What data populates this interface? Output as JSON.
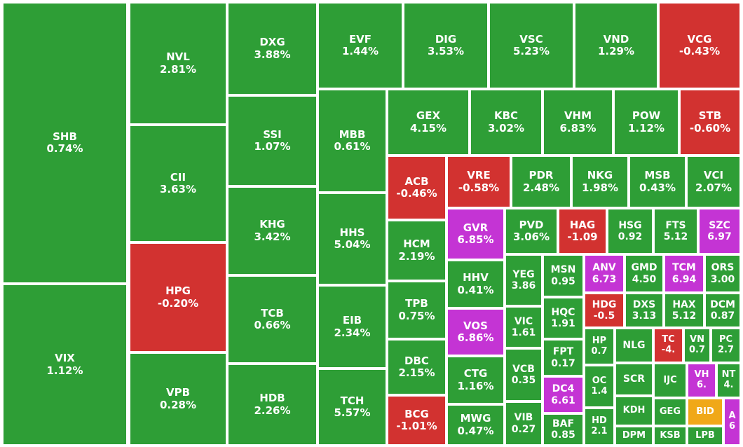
{
  "colors": {
    "up": "#2e9e36",
    "down": "#d23230",
    "ceiling": "#c434d4",
    "reference": "#f0a818"
  },
  "chart_data": {
    "type": "treemap",
    "tiles": [
      {
        "label": "SHB",
        "value": "0.74%",
        "status": "up"
      },
      {
        "label": "VIX",
        "value": "1.12%",
        "status": "up"
      },
      {
        "label": "NVL",
        "value": "2.81%",
        "status": "up"
      },
      {
        "label": "CII",
        "value": "3.63%",
        "status": "up"
      },
      {
        "label": "HPG",
        "value": "-0.20%",
        "status": "down"
      },
      {
        "label": "VPB",
        "value": "0.28%",
        "status": "up"
      },
      {
        "label": "DXG",
        "value": "3.88%",
        "status": "up"
      },
      {
        "label": "SSI",
        "value": "1.07%",
        "status": "up"
      },
      {
        "label": "KHG",
        "value": "3.42%",
        "status": "up"
      },
      {
        "label": "TCB",
        "value": "0.66%",
        "status": "up"
      },
      {
        "label": "HDB",
        "value": "2.26%",
        "status": "up"
      },
      {
        "label": "EVF",
        "value": "1.44%",
        "status": "up"
      },
      {
        "label": "DIG",
        "value": "3.53%",
        "status": "up"
      },
      {
        "label": "VSC",
        "value": "5.23%",
        "status": "up"
      },
      {
        "label": "VND",
        "value": "1.29%",
        "status": "up"
      },
      {
        "label": "VCG",
        "value": "-0.43%",
        "status": "down"
      },
      {
        "label": "MBB",
        "value": "0.61%",
        "status": "up"
      },
      {
        "label": "HHS",
        "value": "5.04%",
        "status": "up"
      },
      {
        "label": "EIB",
        "value": "2.34%",
        "status": "up"
      },
      {
        "label": "TCH",
        "value": "5.57%",
        "status": "up"
      },
      {
        "label": "GEX",
        "value": "4.15%",
        "status": "up"
      },
      {
        "label": "KBC",
        "value": "3.02%",
        "status": "up"
      },
      {
        "label": "VHM",
        "value": "6.83%",
        "status": "up"
      },
      {
        "label": "POW",
        "value": "1.12%",
        "status": "up"
      },
      {
        "label": "STB",
        "value": "-0.60%",
        "status": "down"
      },
      {
        "label": "ACB",
        "value": "-0.46%",
        "status": "down"
      },
      {
        "label": "VRE",
        "value": "-0.58%",
        "status": "down"
      },
      {
        "label": "PDR",
        "value": "2.48%",
        "status": "up"
      },
      {
        "label": "NKG",
        "value": "1.98%",
        "status": "up"
      },
      {
        "label": "MSB",
        "value": "0.43%",
        "status": "up"
      },
      {
        "label": "VCI",
        "value": "2.07%",
        "status": "up"
      },
      {
        "label": "HCM",
        "value": "2.19%",
        "status": "up"
      },
      {
        "label": "TPB",
        "value": "0.75%",
        "status": "up"
      },
      {
        "label": "DBC",
        "value": "2.15%",
        "status": "up"
      },
      {
        "label": "BCG",
        "value": "-1.01%",
        "status": "down"
      },
      {
        "label": "GVR",
        "value": "6.85%",
        "status": "ceiling"
      },
      {
        "label": "HHV",
        "value": "0.41%",
        "status": "up"
      },
      {
        "label": "VOS",
        "value": "6.86%",
        "status": "ceiling"
      },
      {
        "label": "CTG",
        "value": "1.16%",
        "status": "up"
      },
      {
        "label": "MWG",
        "value": "0.47%",
        "status": "up"
      },
      {
        "label": "PVD",
        "value": "3.06%",
        "status": "up"
      },
      {
        "label": "HAG",
        "value": "-1.09",
        "status": "down"
      },
      {
        "label": "HSG",
        "value": "0.92",
        "status": "up"
      },
      {
        "label": "FTS",
        "value": "5.12",
        "status": "up"
      },
      {
        "label": "SZC",
        "value": "6.97",
        "status": "ceiling"
      },
      {
        "label": "YEG",
        "value": "3.86",
        "status": "up"
      },
      {
        "label": "VIC",
        "value": "1.61",
        "status": "up"
      },
      {
        "label": "VCB",
        "value": "0.35",
        "status": "up"
      },
      {
        "label": "VIB",
        "value": "0.27",
        "status": "up"
      },
      {
        "label": "MSN",
        "value": "0.95",
        "status": "up"
      },
      {
        "label": "HQC",
        "value": "1.91",
        "status": "up"
      },
      {
        "label": "FPT",
        "value": "0.17",
        "status": "up"
      },
      {
        "label": "DC4",
        "value": "6.61",
        "status": "ceiling"
      },
      {
        "label": "BAF",
        "value": "0.85",
        "status": "up"
      },
      {
        "label": "ANV",
        "value": "6.73",
        "status": "ceiling"
      },
      {
        "label": "GMD",
        "value": "4.50",
        "status": "up"
      },
      {
        "label": "TCM",
        "value": "6.94",
        "status": "ceiling"
      },
      {
        "label": "ORS",
        "value": "3.00",
        "status": "up"
      },
      {
        "label": "HDG",
        "value": "-0.5",
        "status": "down"
      },
      {
        "label": "DXS",
        "value": "3.13",
        "status": "up"
      },
      {
        "label": "HAX",
        "value": "5.12",
        "status": "up"
      },
      {
        "label": "DCM",
        "value": "0.87",
        "status": "up"
      },
      {
        "label": "HP",
        "value": "0.7",
        "status": "up"
      },
      {
        "label": "OC",
        "value": "1.4",
        "status": "up"
      },
      {
        "label": "HD",
        "value": "2.1",
        "status": "up"
      },
      {
        "label": "NLG",
        "value": "",
        "status": "up"
      },
      {
        "label": "SCR",
        "value": "",
        "status": "up"
      },
      {
        "label": "KDH",
        "value": "",
        "status": "up"
      },
      {
        "label": "DPM",
        "value": "",
        "status": "up"
      },
      {
        "label": "TC",
        "value": "-4.",
        "status": "down"
      },
      {
        "label": "VN",
        "value": "0.7",
        "status": "up"
      },
      {
        "label": "PC",
        "value": "2.7",
        "status": "up"
      },
      {
        "label": "IJC",
        "value": "",
        "status": "up"
      },
      {
        "label": "VH",
        "value": "6.",
        "status": "ceiling"
      },
      {
        "label": "NT",
        "value": "4.",
        "status": "up"
      },
      {
        "label": "GEG",
        "value": "",
        "status": "up"
      },
      {
        "label": "BID",
        "value": "",
        "status": "reference"
      },
      {
        "label": "A",
        "value": "6",
        "status": "ceiling"
      },
      {
        "label": "KSB",
        "value": "",
        "status": "up"
      },
      {
        "label": "LPB",
        "value": "",
        "status": "up"
      }
    ]
  }
}
